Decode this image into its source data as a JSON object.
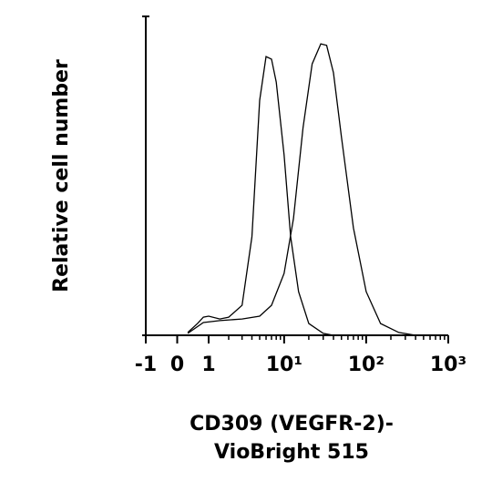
{
  "chart_data": {
    "type": "line",
    "ylabel": "Relative cell number",
    "xlabel": [
      "CD309 (VEGFR-2)-",
      "VioBright 515"
    ],
    "xscale": "asinh",
    "xlim": [
      -1,
      1000
    ],
    "ylim": [
      0,
      100
    ],
    "xticks": [
      -1,
      0,
      1,
      {
        "value": 10,
        "label": "10¹"
      },
      {
        "value": 100,
        "label": "10²"
      },
      {
        "value": 1000,
        "label": "10³"
      }
    ],
    "xminor_ticks": [
      2,
      3,
      4,
      5,
      6,
      7,
      8,
      9,
      20,
      30,
      40,
      50,
      60,
      70,
      80,
      90,
      200,
      300,
      400,
      500,
      600,
      700,
      800,
      900
    ],
    "series": [
      {
        "color": "#000000",
        "x": [
          0.3,
          0.6,
          0.8,
          1,
          1.5,
          2,
          3,
          4,
          5,
          6,
          7,
          8,
          10,
          12,
          15,
          20,
          30,
          40
        ],
        "values": [
          0.9,
          3.7,
          5.7,
          6.0,
          5.1,
          5.7,
          9.4,
          30.9,
          73.7,
          87.4,
          86.6,
          79.4,
          56.6,
          30.9,
          13.7,
          3.7,
          0.6,
          0
        ]
      },
      {
        "color": "#000000",
        "x": [
          0.3,
          0.8,
          1.5,
          3,
          5,
          7,
          10,
          13,
          17,
          22,
          28,
          33,
          40,
          50,
          70,
          100,
          150,
          250,
          400
        ],
        "values": [
          0.6,
          4,
          4.6,
          5.1,
          6,
          9.4,
          19.4,
          36.6,
          65.1,
          85.1,
          91.4,
          90.9,
          82.3,
          62.3,
          33.7,
          13.7,
          3.7,
          0.9,
          0
        ]
      }
    ]
  }
}
